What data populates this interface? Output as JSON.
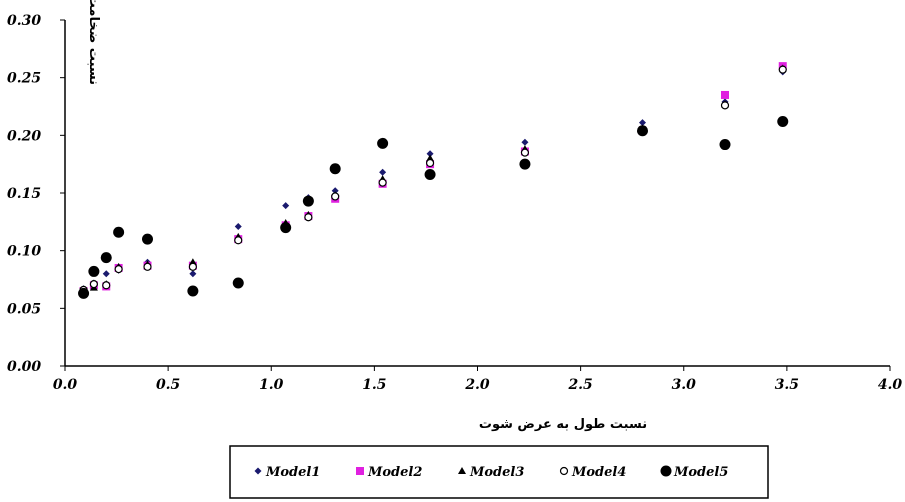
{
  "chart_data": {
    "type": "scatter",
    "xlabel": "نسبت طول به عرض شوت",
    "ylabel": "نسبت ضخامت لایه مرزی به عمق",
    "xlim": [
      0,
      4
    ],
    "ylim": [
      0,
      0.3
    ],
    "x_ticks": [
      "0.0",
      "0.5",
      "1.0",
      "1.5",
      "2.0",
      "2.5",
      "3.0",
      "3.5",
      "4.0"
    ],
    "y_ticks": [
      "0.00",
      "0.05",
      "0.10",
      "0.15",
      "0.20",
      "0.25",
      "0.30"
    ],
    "legend_position": "bottom",
    "series": [
      {
        "name": "Model1",
        "marker": "diamond",
        "color": "#1a1a6e",
        "points": [
          [
            0.09,
            0.067
          ],
          [
            0.14,
            0.072
          ],
          [
            0.2,
            0.08
          ],
          [
            0.26,
            0.083
          ],
          [
            0.4,
            0.09
          ],
          [
            0.62,
            0.08
          ],
          [
            0.84,
            0.121
          ],
          [
            1.07,
            0.139
          ],
          [
            1.18,
            0.146
          ],
          [
            1.31,
            0.152
          ],
          [
            1.54,
            0.168
          ],
          [
            1.77,
            0.184
          ],
          [
            2.23,
            0.194
          ],
          [
            2.8,
            0.211
          ],
          [
            3.2,
            0.229
          ],
          [
            3.48,
            0.255
          ]
        ]
      },
      {
        "name": "Model2",
        "marker": "square",
        "color": "#e020e0",
        "points": [
          [
            0.09,
            0.065
          ],
          [
            0.14,
            0.07
          ],
          [
            0.2,
            0.069
          ],
          [
            0.26,
            0.085
          ],
          [
            0.4,
            0.087
          ],
          [
            0.62,
            0.087
          ],
          [
            0.84,
            0.11
          ],
          [
            1.07,
            0.122
          ],
          [
            1.18,
            0.13
          ],
          [
            1.31,
            0.145
          ],
          [
            1.54,
            0.158
          ],
          [
            1.77,
            0.175
          ],
          [
            2.23,
            0.186
          ],
          [
            2.8,
            0.204
          ],
          [
            3.2,
            0.235
          ],
          [
            3.48,
            0.26
          ]
        ]
      },
      {
        "name": "Model3",
        "marker": "triangle",
        "color": "#000000",
        "points": [
          [
            0.09,
            0.064
          ],
          [
            0.14,
            0.068
          ],
          [
            0.2,
            0.071
          ],
          [
            0.26,
            0.086
          ],
          [
            0.4,
            0.088
          ],
          [
            0.62,
            0.09
          ],
          [
            0.84,
            0.112
          ],
          [
            1.07,
            0.124
          ],
          [
            1.18,
            0.131
          ],
          [
            1.31,
            0.148
          ],
          [
            1.54,
            0.162
          ],
          [
            1.77,
            0.18
          ],
          [
            2.23,
            0.188
          ],
          [
            2.8,
            0.206
          ],
          [
            3.2,
            0.227
          ],
          [
            3.48,
            0.258
          ]
        ]
      },
      {
        "name": "Model4",
        "marker": "circle-open",
        "color": "#000000",
        "points": [
          [
            0.09,
            0.066
          ],
          [
            0.14,
            0.071
          ],
          [
            0.2,
            0.07
          ],
          [
            0.26,
            0.084
          ],
          [
            0.4,
            0.086
          ],
          [
            0.62,
            0.086
          ],
          [
            0.84,
            0.109
          ],
          [
            1.07,
            0.121
          ],
          [
            1.18,
            0.129
          ],
          [
            1.31,
            0.147
          ],
          [
            1.54,
            0.159
          ],
          [
            1.77,
            0.176
          ],
          [
            2.23,
            0.185
          ],
          [
            2.8,
            0.203
          ],
          [
            3.2,
            0.226
          ],
          [
            3.48,
            0.257
          ]
        ]
      },
      {
        "name": "Model5",
        "marker": "circle-filled",
        "color": "#000000",
        "points": [
          [
            0.09,
            0.063
          ],
          [
            0.14,
            0.082
          ],
          [
            0.2,
            0.094
          ],
          [
            0.26,
            0.116
          ],
          [
            0.4,
            0.11
          ],
          [
            0.62,
            0.065
          ],
          [
            0.84,
            0.072
          ],
          [
            1.07,
            0.12
          ],
          [
            1.18,
            0.143
          ],
          [
            1.31,
            0.171
          ],
          [
            1.54,
            0.193
          ],
          [
            1.77,
            0.166
          ],
          [
            2.23,
            0.175
          ],
          [
            2.8,
            0.204
          ],
          [
            3.2,
            0.192
          ],
          [
            3.48,
            0.212
          ]
        ]
      }
    ]
  }
}
